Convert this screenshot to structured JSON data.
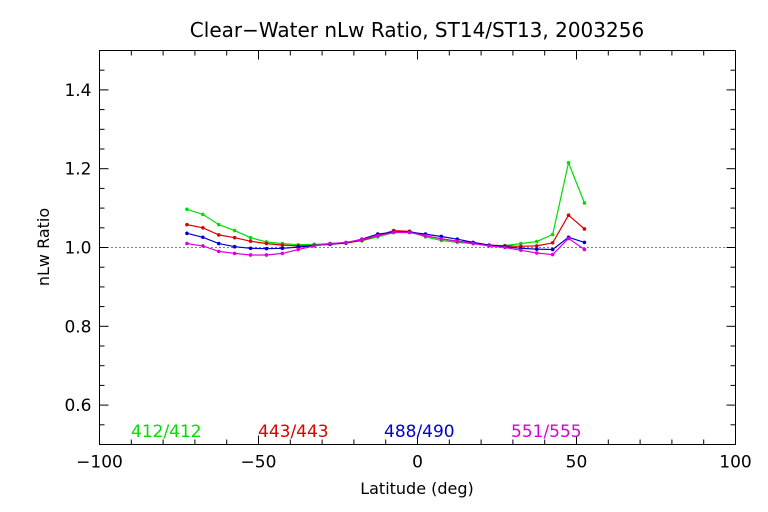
{
  "chart_data": {
    "type": "line",
    "title": "Clear−Water nLw Ratio, ST14/ST13, 2003256",
    "xlabel": "Latitude (deg)",
    "ylabel": "nLw Ratio",
    "xlim": [
      -100,
      100
    ],
    "ylim": [
      0.5,
      1.5
    ],
    "x_ticks": [
      "−100",
      "−50",
      "0",
      "50",
      "100"
    ],
    "y_ticks": [
      "0.6",
      "0.8",
      "1.0",
      "1.2",
      "1.4"
    ],
    "x_tick_values": [
      -100,
      -50,
      0,
      50,
      100
    ],
    "y_tick_values": [
      0.6,
      0.8,
      1.0,
      1.2,
      1.4
    ],
    "reference_line": {
      "y": 1.0,
      "style": "dotted"
    },
    "legend_placement": "bottom inside plot",
    "x": [
      -72.5,
      -67.5,
      -62.5,
      -57.5,
      -52.5,
      -47.5,
      -42.5,
      -37.5,
      -32.5,
      -27.5,
      -22.5,
      -17.5,
      -12.5,
      -7.5,
      -2.5,
      2.5,
      7.5,
      12.5,
      17.5,
      22.5,
      27.5,
      32.5,
      37.5,
      42.5,
      47.5,
      52.5
    ],
    "series": [
      {
        "name": "412/412",
        "color": "#00dd00",
        "values": [
          1.097,
          1.084,
          1.058,
          1.043,
          1.025,
          1.014,
          1.01,
          1.007,
          1.008,
          1.01,
          1.012,
          1.017,
          1.027,
          1.038,
          1.04,
          1.027,
          1.018,
          1.013,
          1.01,
          1.005,
          1.005,
          1.01,
          1.015,
          1.033,
          1.215,
          1.113
        ]
      },
      {
        "name": "443/443",
        "color": "#e00000",
        "values": [
          1.058,
          1.05,
          1.032,
          1.025,
          1.016,
          1.01,
          1.006,
          1.004,
          1.005,
          1.008,
          1.011,
          1.018,
          1.03,
          1.043,
          1.041,
          1.03,
          1.022,
          1.016,
          1.012,
          1.006,
          1.004,
          1.003,
          1.004,
          1.012,
          1.082,
          1.047
        ]
      },
      {
        "name": "488/490",
        "color": "#0000cc",
        "values": [
          1.036,
          1.026,
          1.01,
          1.002,
          0.998,
          0.997,
          0.998,
          1.001,
          1.005,
          1.008,
          1.012,
          1.021,
          1.034,
          1.039,
          1.039,
          1.034,
          1.028,
          1.021,
          1.013,
          1.006,
          1.002,
          0.998,
          0.996,
          0.995,
          1.026,
          1.013
        ]
      },
      {
        "name": "551/555",
        "color": "#dd00dd",
        "values": [
          1.01,
          1.004,
          0.99,
          0.985,
          0.981,
          0.981,
          0.985,
          0.995,
          1.004,
          1.01,
          1.013,
          1.02,
          1.03,
          1.038,
          1.038,
          1.03,
          1.022,
          1.016,
          1.01,
          1.004,
          1.0,
          0.993,
          0.986,
          0.982,
          1.023,
          0.995
        ]
      }
    ]
  }
}
